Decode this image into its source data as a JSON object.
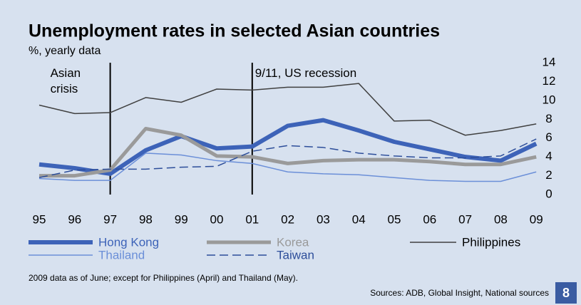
{
  "chart_data": {
    "type": "line",
    "title": "Unemployment rates in selected Asian countries",
    "subtitle": "%, yearly data",
    "categories": [
      "95",
      "96",
      "97",
      "98",
      "99",
      "00",
      "01",
      "02",
      "03",
      "04",
      "05",
      "06",
      "07",
      "08",
      "09"
    ],
    "series": [
      {
        "name": "Hong Kong",
        "color": "#3d63b8",
        "width": 6,
        "dash": false,
        "values": [
          3.2,
          2.8,
          2.2,
          4.7,
          6.2,
          4.9,
          5.1,
          7.3,
          7.9,
          6.8,
          5.6,
          4.8,
          4.0,
          3.6,
          5.4
        ]
      },
      {
        "name": "Korea",
        "color": "#9a9a9a",
        "width": 5,
        "dash": false,
        "values": [
          2.0,
          2.0,
          2.6,
          7.0,
          6.3,
          4.1,
          4.0,
          3.3,
          3.6,
          3.7,
          3.7,
          3.5,
          3.2,
          3.2,
          4.0
        ]
      },
      {
        "name": "Philippines",
        "color": "#404040",
        "width": 1.5,
        "dash": false,
        "values": [
          9.5,
          8.6,
          8.7,
          10.3,
          9.8,
          11.2,
          11.1,
          11.4,
          11.4,
          11.8,
          7.8,
          7.9,
          6.3,
          6.8,
          7.5
        ]
      },
      {
        "name": "Thailand",
        "color": "#6b8fd8",
        "width": 1.5,
        "dash": false,
        "values": [
          1.7,
          1.5,
          1.5,
          4.4,
          4.2,
          3.6,
          3.3,
          2.4,
          2.2,
          2.1,
          1.8,
          1.5,
          1.4,
          1.4,
          2.4
        ]
      },
      {
        "name": "Taiwan",
        "color": "#2d4e9a",
        "width": 1.5,
        "dash": true,
        "values": [
          1.8,
          2.6,
          2.7,
          2.7,
          2.9,
          3.0,
          4.6,
          5.2,
          5.0,
          4.4,
          4.1,
          3.9,
          3.9,
          4.1,
          5.9
        ]
      }
    ],
    "ylim": [
      0,
      14
    ],
    "yticks": [
      0,
      2,
      4,
      6,
      8,
      10,
      12,
      14
    ],
    "grid": false,
    "annotations": [
      {
        "text": "Asian crisis",
        "x": "97"
      },
      {
        "text": "9/11, US recession",
        "x": "01"
      }
    ],
    "note": "2009 data as of June; except for Philippines (April) and Thailand (May).",
    "source": "Sources: ADB, Global Insight, National sources",
    "page_number": "8"
  }
}
